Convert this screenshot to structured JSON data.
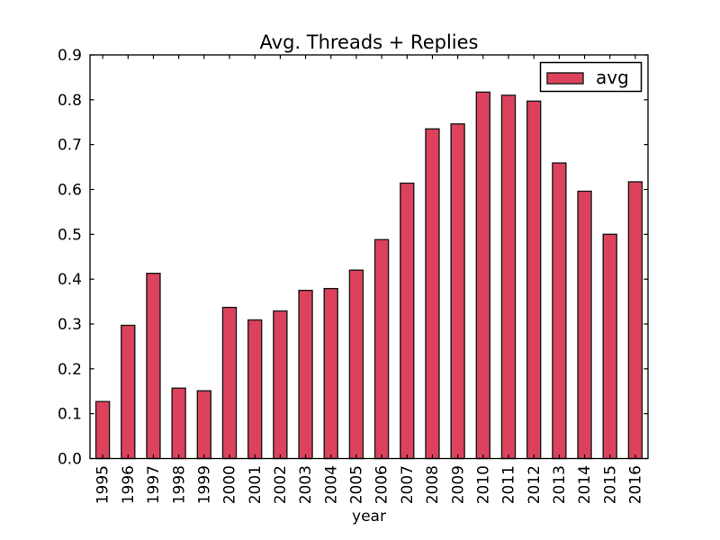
{
  "chart_data": {
    "type": "bar",
    "title": "Avg. Threads + Replies",
    "xlabel": "year",
    "ylabel": "",
    "legend": [
      "avg"
    ],
    "legend_position": "upper right",
    "categories": [
      "1995",
      "1996",
      "1997",
      "1998",
      "1999",
      "2000",
      "2001",
      "2002",
      "2003",
      "2004",
      "2005",
      "2006",
      "2007",
      "2008",
      "2009",
      "2010",
      "2011",
      "2012",
      "2013",
      "2014",
      "2015",
      "2016"
    ],
    "series": [
      {
        "name": "avg",
        "values": [
          0.127,
          0.297,
          0.413,
          0.157,
          0.151,
          0.337,
          0.309,
          0.329,
          0.375,
          0.379,
          0.42,
          0.488,
          0.614,
          0.735,
          0.746,
          0.817,
          0.81,
          0.797,
          0.659,
          0.596,
          0.5,
          0.617
        ]
      }
    ],
    "ylim": [
      0.0,
      0.9
    ],
    "yticks": [
      "0.0",
      "0.1",
      "0.2",
      "0.3",
      "0.4",
      "0.5",
      "0.6",
      "0.7",
      "0.8",
      "0.9"
    ],
    "grid": false,
    "x_tick_rotation": 90,
    "colors": {
      "bar_fill": "#dc425c",
      "bar_edge": "#1a1a1a",
      "axis": "#000000",
      "background": "#ffffff"
    }
  }
}
